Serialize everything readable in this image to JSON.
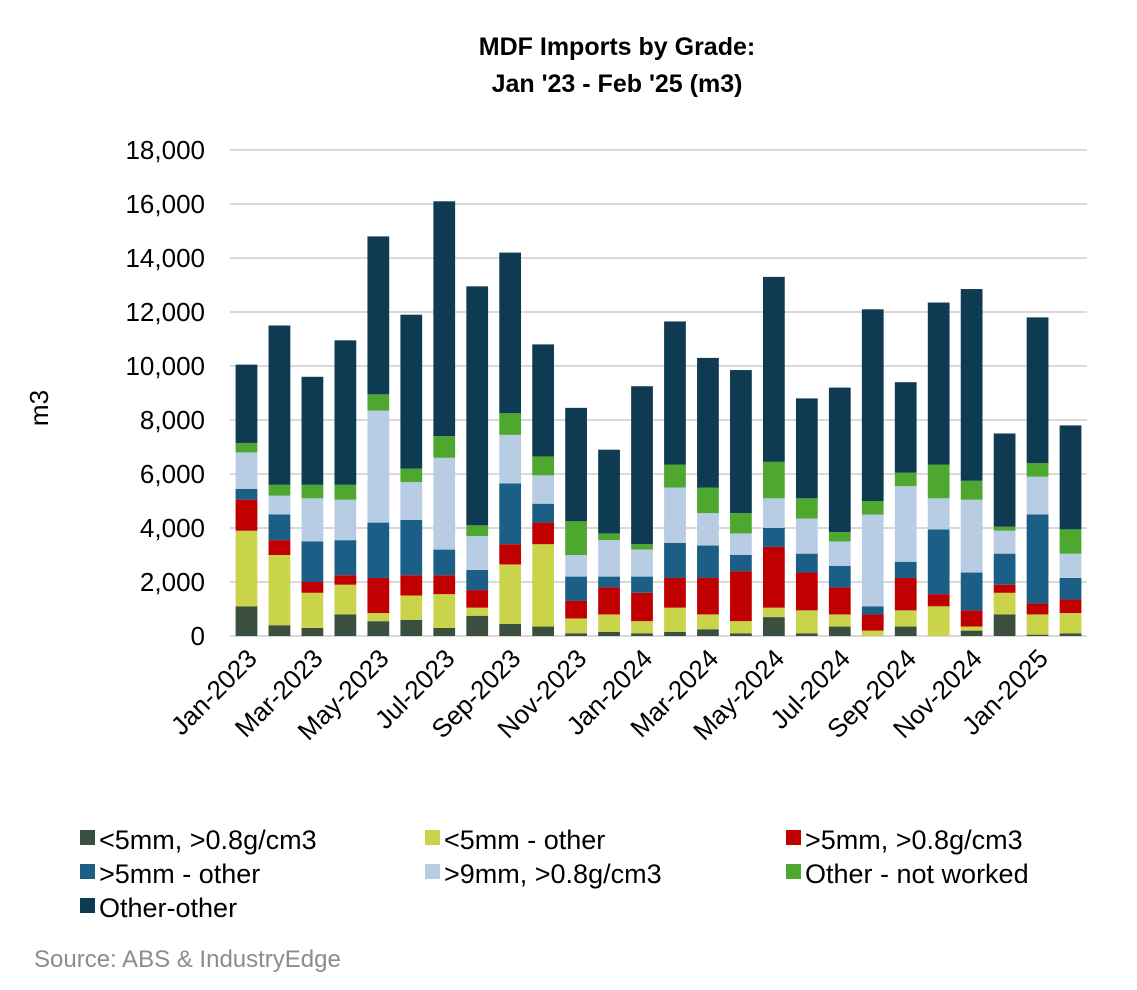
{
  "chart_data": {
    "type": "bar",
    "stacked": true,
    "title": [
      "MDF Imports by Grade:",
      "Jan '23 - Feb '25 (m3)"
    ],
    "xlabel": "",
    "ylabel": "m3",
    "ylim": [
      0,
      18000
    ],
    "yticks": [
      0,
      2000,
      4000,
      6000,
      8000,
      10000,
      12000,
      14000,
      16000,
      18000
    ],
    "ytick_labels": [
      "0",
      "2,000",
      "4,000",
      "6,000",
      "8,000",
      "10,000",
      "12,000",
      "14,000",
      "16,000",
      "18,000"
    ],
    "categories": [
      "Jan-2023",
      "Feb-2023",
      "Mar-2023",
      "Apr-2023",
      "May-2023",
      "Jun-2023",
      "Jul-2023",
      "Aug-2023",
      "Sep-2023",
      "Oct-2023",
      "Nov-2023",
      "Dec-2023",
      "Jan-2024",
      "Feb-2024",
      "Mar-2024",
      "Apr-2024",
      "May-2024",
      "Jun-2024",
      "Jul-2024",
      "Aug-2024",
      "Sep-2024",
      "Oct-2024",
      "Nov-2024",
      "Dec-2024",
      "Jan-2025",
      "Feb-2025"
    ],
    "shown_tick_labels": [
      "Jan-2023",
      "Mar-2023",
      "May-2023",
      "Jul-2023",
      "Sep-2023",
      "Nov-2023",
      "Jan-2024",
      "Mar-2024",
      "May-2024",
      "Jul-2024",
      "Sep-2024",
      "Nov-2024",
      "Jan-2025"
    ],
    "grid": true,
    "legend_position": "bottom",
    "series": [
      {
        "name": "<5mm, >0.8g/cm3",
        "color": "#3b4f3f",
        "values": [
          1100,
          400,
          300,
          800,
          550,
          600,
          300,
          750,
          450,
          350,
          100,
          150,
          100,
          150,
          250,
          100,
          700,
          100,
          350,
          0,
          350,
          0,
          200,
          800,
          50,
          100
        ]
      },
      {
        "name": "<5mm - other",
        "color": "#c9d44a",
        "values": [
          2800,
          2600,
          1300,
          1100,
          300,
          900,
          1250,
          300,
          2200,
          3050,
          550,
          650,
          450,
          900,
          550,
          450,
          350,
          850,
          450,
          200,
          600,
          1100,
          150,
          800,
          750,
          750
        ]
      },
      {
        "name": ">5mm, >0.8g/cm3",
        "color": "#c00000",
        "values": [
          1150,
          550,
          400,
          350,
          1300,
          750,
          700,
          650,
          750,
          800,
          650,
          1000,
          1050,
          1100,
          1350,
          1850,
          2250,
          1400,
          1000,
          600,
          1200,
          450,
          600,
          300,
          400,
          500
        ]
      },
      {
        "name": ">5mm - other",
        "color": "#1b5e86",
        "values": [
          400,
          950,
          1500,
          1300,
          2050,
          2050,
          950,
          750,
          2250,
          700,
          900,
          400,
          600,
          1300,
          1200,
          600,
          700,
          700,
          800,
          300,
          600,
          2400,
          1400,
          1150,
          3300,
          800
        ]
      },
      {
        "name": ">9mm, >0.8g/cm3",
        "color": "#b8cce4",
        "values": [
          1350,
          700,
          1600,
          1500,
          4150,
          1400,
          3400,
          1250,
          1800,
          1050,
          800,
          1350,
          1000,
          2050,
          1200,
          800,
          1100,
          1300,
          900,
          3400,
          2800,
          1150,
          2700,
          850,
          1400,
          900
        ]
      },
      {
        "name": "Other - not worked",
        "color": "#4ea72e",
        "values": [
          350,
          400,
          500,
          550,
          600,
          500,
          800,
          400,
          800,
          700,
          1250,
          250,
          200,
          850,
          950,
          750,
          1350,
          750,
          350,
          500,
          500,
          1250,
          700,
          150,
          500,
          900
        ]
      },
      {
        "name": "Other-other",
        "color": "#0e3a52",
        "values": [
          2900,
          5900,
          4000,
          5350,
          5850,
          5700,
          8700,
          8850,
          5950,
          4150,
          4200,
          3100,
          5850,
          5300,
          4800,
          5300,
          6850,
          3700,
          5350,
          7100,
          3350,
          6000,
          7100,
          3450,
          5400,
          3850
        ]
      }
    ]
  },
  "source": "Source: ABS & IndustryEdge"
}
